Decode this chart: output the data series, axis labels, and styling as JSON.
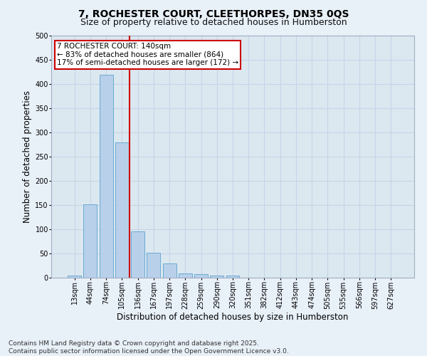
{
  "title_line1": "7, ROCHESTER COURT, CLEETHORPES, DN35 0QS",
  "title_line2": "Size of property relative to detached houses in Humberston",
  "xlabel": "Distribution of detached houses by size in Humberston",
  "ylabel": "Number of detached properties",
  "categories": [
    "13sqm",
    "44sqm",
    "74sqm",
    "105sqm",
    "136sqm",
    "167sqm",
    "197sqm",
    "228sqm",
    "259sqm",
    "290sqm",
    "320sqm",
    "351sqm",
    "382sqm",
    "412sqm",
    "443sqm",
    "474sqm",
    "505sqm",
    "535sqm",
    "566sqm",
    "597sqm",
    "627sqm"
  ],
  "values": [
    5,
    152,
    419,
    280,
    96,
    51,
    29,
    9,
    8,
    5,
    4,
    0,
    0,
    0,
    0,
    0,
    0,
    0,
    0,
    0,
    0
  ],
  "bar_color": "#b8d0ea",
  "bar_edge_color": "#6aaad4",
  "vline_x_index": 3.5,
  "vline_color": "#cc0000",
  "annotation_text": "7 ROCHESTER COURT: 140sqm\n← 83% of detached houses are smaller (864)\n17% of semi-detached houses are larger (172) →",
  "annotation_box_color": "#cc0000",
  "ylim": [
    0,
    500
  ],
  "yticks": [
    0,
    50,
    100,
    150,
    200,
    250,
    300,
    350,
    400,
    450,
    500
  ],
  "grid_color": "#c8d4e8",
  "bg_color": "#dce8f0",
  "fig_bg_color": "#e8f0f8",
  "footer_line1": "Contains HM Land Registry data © Crown copyright and database right 2025.",
  "footer_line2": "Contains public sector information licensed under the Open Government Licence v3.0.",
  "title_fontsize": 10,
  "subtitle_fontsize": 9,
  "axis_label_fontsize": 8.5,
  "tick_fontsize": 7,
  "annotation_fontsize": 7.5,
  "footer_fontsize": 6.5
}
